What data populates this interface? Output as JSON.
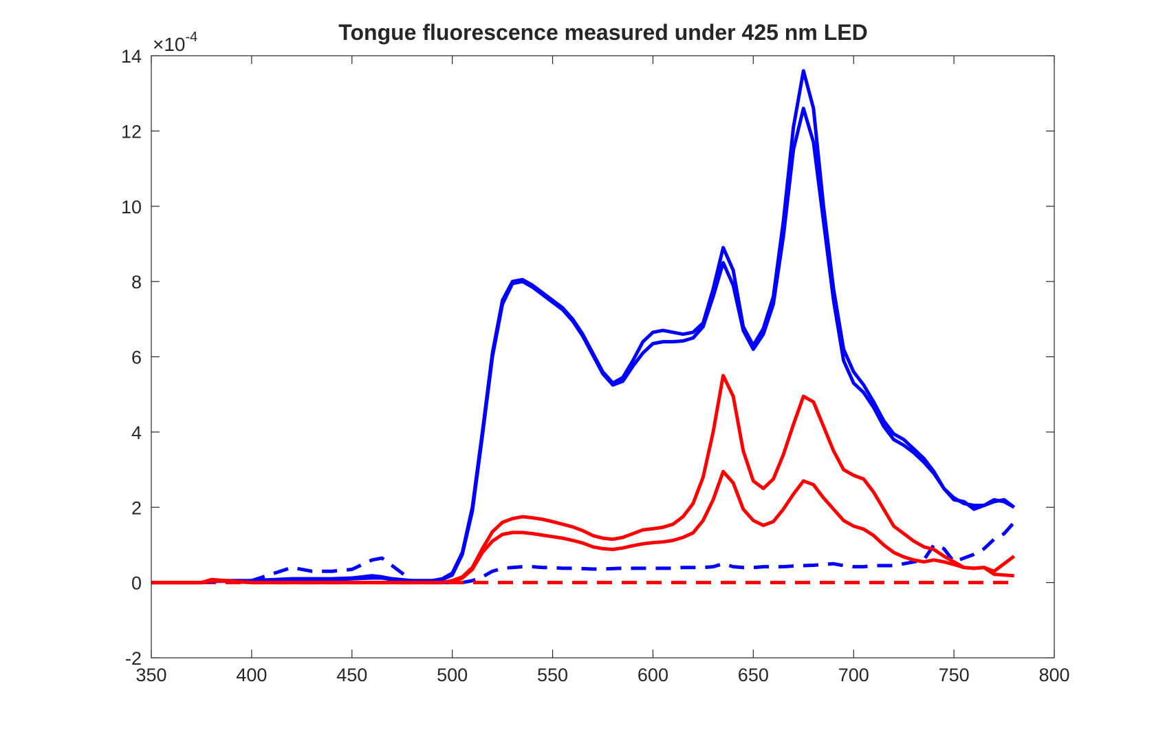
{
  "chart_data": {
    "type": "line",
    "title": "Tongue fluorescence measured under 425 nm LED",
    "y_multiplier": {
      "base": "×10",
      "exponent": "-4"
    },
    "x": [
      350,
      375,
      380,
      400,
      420,
      430,
      440,
      450,
      460,
      465,
      470,
      480,
      490,
      495,
      500,
      505,
      510,
      515,
      520,
      525,
      530,
      535,
      540,
      545,
      550,
      555,
      560,
      565,
      570,
      575,
      580,
      585,
      590,
      595,
      600,
      605,
      610,
      615,
      620,
      625,
      630,
      635,
      640,
      645,
      650,
      655,
      660,
      665,
      670,
      675,
      680,
      685,
      690,
      695,
      700,
      705,
      710,
      715,
      720,
      725,
      730,
      735,
      740,
      745,
      750,
      755,
      760,
      765,
      770,
      775,
      780
    ],
    "series": [
      {
        "color": "#0000ff",
        "style": "dashed",
        "values": [
          0,
          0,
          0.05,
          0.05,
          0.4,
          0.3,
          0.3,
          0.35,
          0.6,
          0.65,
          0.45,
          0.05,
          0,
          0,
          0,
          0,
          0.05,
          0.15,
          0.3,
          0.38,
          0.4,
          0.42,
          0.42,
          0.4,
          0.4,
          0.38,
          0.38,
          0.37,
          0.36,
          0.36,
          0.37,
          0.38,
          0.38,
          0.38,
          0.38,
          0.38,
          0.38,
          0.4,
          0.4,
          0.4,
          0.42,
          0.5,
          0.42,
          0.4,
          0.4,
          0.42,
          0.42,
          0.42,
          0.44,
          0.45,
          0.46,
          0.48,
          0.5,
          0.45,
          0.42,
          0.42,
          0.45,
          0.45,
          0.45,
          0.5,
          0.55,
          0.6,
          1.0,
          0.9,
          0.55,
          0.65,
          0.75,
          0.9,
          1.15,
          1.3,
          1.6
        ]
      },
      {
        "color": "#ff0000",
        "style": "dashed",
        "x": [
          350,
          780
        ],
        "values": [
          0,
          0
        ]
      },
      {
        "color": "#0000ff",
        "style": "solid",
        "values": [
          0,
          0,
          0.05,
          0.05,
          0.1,
          0.1,
          0.1,
          0.12,
          0.18,
          0.15,
          0.1,
          0.05,
          0.05,
          0.1,
          0.25,
          0.8,
          2.0,
          4.0,
          6.1,
          7.5,
          8.0,
          8.05,
          7.9,
          7.7,
          7.5,
          7.3,
          7.0,
          6.6,
          6.1,
          5.6,
          5.3,
          5.45,
          5.9,
          6.4,
          6.65,
          6.7,
          6.65,
          6.6,
          6.65,
          6.9,
          7.8,
          8.9,
          8.3,
          6.8,
          6.3,
          6.75,
          7.6,
          9.6,
          12.1,
          13.6,
          12.6,
          10.0,
          7.8,
          6.2,
          5.6,
          5.25,
          4.8,
          4.3,
          3.95,
          3.8,
          3.55,
          3.3,
          2.95,
          2.5,
          2.25,
          2.1,
          2.05,
          2.05,
          2.2,
          2.15,
          2.0
        ]
      },
      {
        "color": "#0000ff",
        "style": "solid",
        "values": [
          0,
          0,
          0.03,
          0.05,
          0.08,
          0.08,
          0.08,
          0.1,
          0.12,
          0.12,
          0.08,
          0.05,
          0.05,
          0.08,
          0.2,
          0.75,
          1.9,
          3.9,
          6.0,
          7.4,
          7.95,
          8.0,
          7.85,
          7.65,
          7.45,
          7.25,
          6.95,
          6.55,
          6.05,
          5.55,
          5.25,
          5.35,
          5.75,
          6.1,
          6.35,
          6.4,
          6.4,
          6.42,
          6.5,
          6.8,
          7.6,
          8.5,
          7.9,
          6.7,
          6.2,
          6.6,
          7.4,
          9.2,
          11.5,
          12.6,
          11.7,
          9.6,
          7.5,
          5.9,
          5.3,
          5.05,
          4.65,
          4.15,
          3.8,
          3.65,
          3.45,
          3.2,
          2.9,
          2.5,
          2.2,
          2.15,
          1.95,
          2.05,
          2.15,
          2.2,
          2.0
        ]
      },
      {
        "color": "#ff0000",
        "style": "solid",
        "values": [
          0,
          0,
          0.08,
          0,
          0,
          0,
          0,
          0,
          0,
          0,
          0,
          0,
          0,
          0,
          0.05,
          0.15,
          0.4,
          0.9,
          1.35,
          1.6,
          1.7,
          1.75,
          1.72,
          1.68,
          1.62,
          1.55,
          1.48,
          1.38,
          1.25,
          1.18,
          1.15,
          1.2,
          1.3,
          1.4,
          1.43,
          1.47,
          1.55,
          1.75,
          2.1,
          2.8,
          4.0,
          5.5,
          4.95,
          3.5,
          2.7,
          2.5,
          2.75,
          3.4,
          4.2,
          4.95,
          4.8,
          4.15,
          3.5,
          3.0,
          2.85,
          2.75,
          2.4,
          1.95,
          1.5,
          1.3,
          1.1,
          0.95,
          0.88,
          0.7,
          0.55,
          0.4,
          0.38,
          0.4,
          0.3,
          0.5,
          0.7
        ]
      },
      {
        "color": "#ff0000",
        "style": "solid",
        "values": [
          0,
          0,
          0.05,
          0,
          0,
          0,
          0,
          0,
          0,
          0,
          0,
          0,
          0,
          0,
          0.03,
          0.12,
          0.35,
          0.8,
          1.1,
          1.28,
          1.33,
          1.33,
          1.3,
          1.26,
          1.22,
          1.18,
          1.12,
          1.05,
          0.95,
          0.9,
          0.88,
          0.92,
          0.98,
          1.03,
          1.06,
          1.08,
          1.12,
          1.2,
          1.32,
          1.65,
          2.2,
          2.95,
          2.65,
          1.95,
          1.65,
          1.52,
          1.62,
          1.95,
          2.35,
          2.7,
          2.6,
          2.25,
          1.95,
          1.65,
          1.5,
          1.42,
          1.25,
          1.0,
          0.8,
          0.68,
          0.6,
          0.55,
          0.6,
          0.55,
          0.48,
          0.4,
          0.38,
          0.4,
          0.22,
          0.2,
          0.18
        ]
      }
    ],
    "xlim": [
      350,
      800
    ],
    "xticks": [
      350,
      400,
      450,
      500,
      550,
      600,
      650,
      700,
      750,
      800
    ],
    "ylim": [
      -2,
      14
    ],
    "yticks": [
      -2,
      0,
      2,
      4,
      6,
      8,
      10,
      12,
      14
    ],
    "box": true
  }
}
